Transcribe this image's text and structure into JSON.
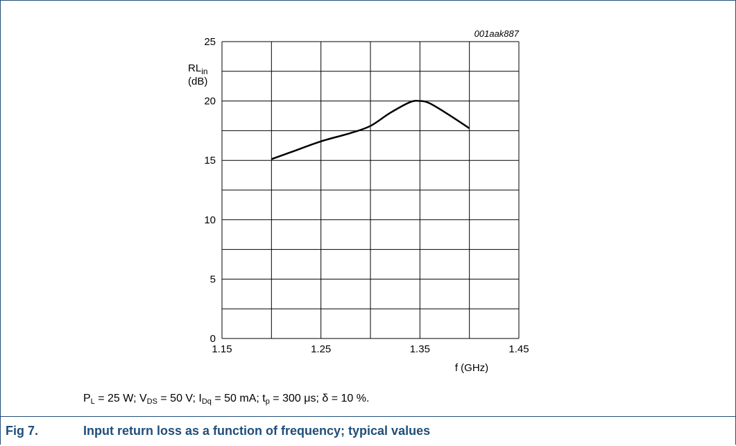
{
  "chart_data": {
    "type": "line",
    "figure_id": "001aak887",
    "ylabel_main": "RL",
    "ylabel_sub": "in",
    "ylabel_unit": "(dB)",
    "xlabel": "f (GHz)",
    "xlim": [
      1.15,
      1.45
    ],
    "ylim": [
      0,
      25
    ],
    "xticks": [
      "1.15",
      "1.25",
      "1.35",
      "1.45"
    ],
    "yticks": [
      "0",
      "5",
      "10",
      "15",
      "20",
      "25"
    ],
    "grid": true,
    "series": [
      {
        "x": [
          1.2,
          1.22,
          1.25,
          1.28,
          1.3,
          1.32,
          1.34,
          1.35,
          1.36,
          1.38,
          1.4
        ],
        "y": [
          15.1,
          15.7,
          16.6,
          17.3,
          17.9,
          19.0,
          19.9,
          20.0,
          19.8,
          18.8,
          17.7
        ]
      }
    ],
    "colors": {
      "line": "#000000",
      "grid": "#000000",
      "caption": "#1f4e79"
    }
  },
  "conditions": {
    "p_sym": "P",
    "p_sub": "L",
    "p_val": " = 25 W; ",
    "v_sym": "V",
    "v_sub": "DS",
    "v_val": " = 50 V; ",
    "i_sym": "I",
    "i_sub": "Dq",
    "i_val": " = 50 mA; ",
    "t_sym": "t",
    "t_sub": "p",
    "t_val": " = 300 μs; ",
    "d_text": "δ = 10 %."
  },
  "caption": {
    "number": "Fig 7.",
    "text": "Input return loss as a function of frequency; typical values"
  }
}
